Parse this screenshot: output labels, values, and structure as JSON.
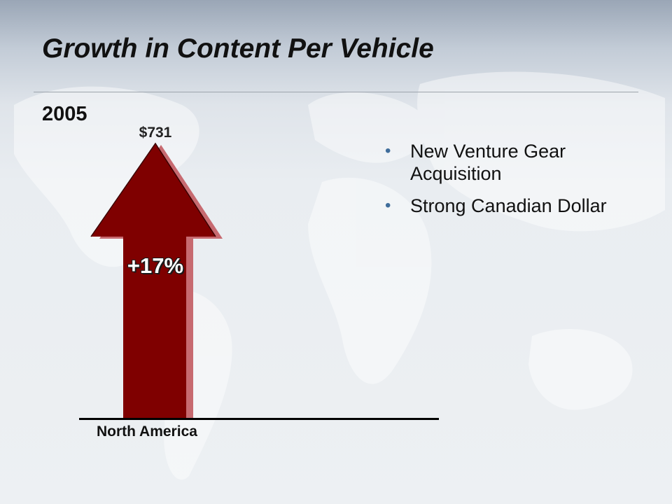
{
  "slide": {
    "title": "Growth in Content Per Vehicle",
    "year": "2005",
    "value_label": "$731",
    "growth_label": "+17%",
    "region_label": "North America",
    "bullets": [
      "New Venture Gear Acquisition",
      "Strong Canadian Dollar"
    ]
  },
  "icons": {
    "bullet": "bullet-dot-icon",
    "arrow": "up-arrow-icon",
    "background": "world-map-icon"
  },
  "colors": {
    "arrow_fill": "#7f0000",
    "arrow_highlight": "#c76a70",
    "bullet": "#3f6d9b",
    "background": "#e9edf1"
  }
}
